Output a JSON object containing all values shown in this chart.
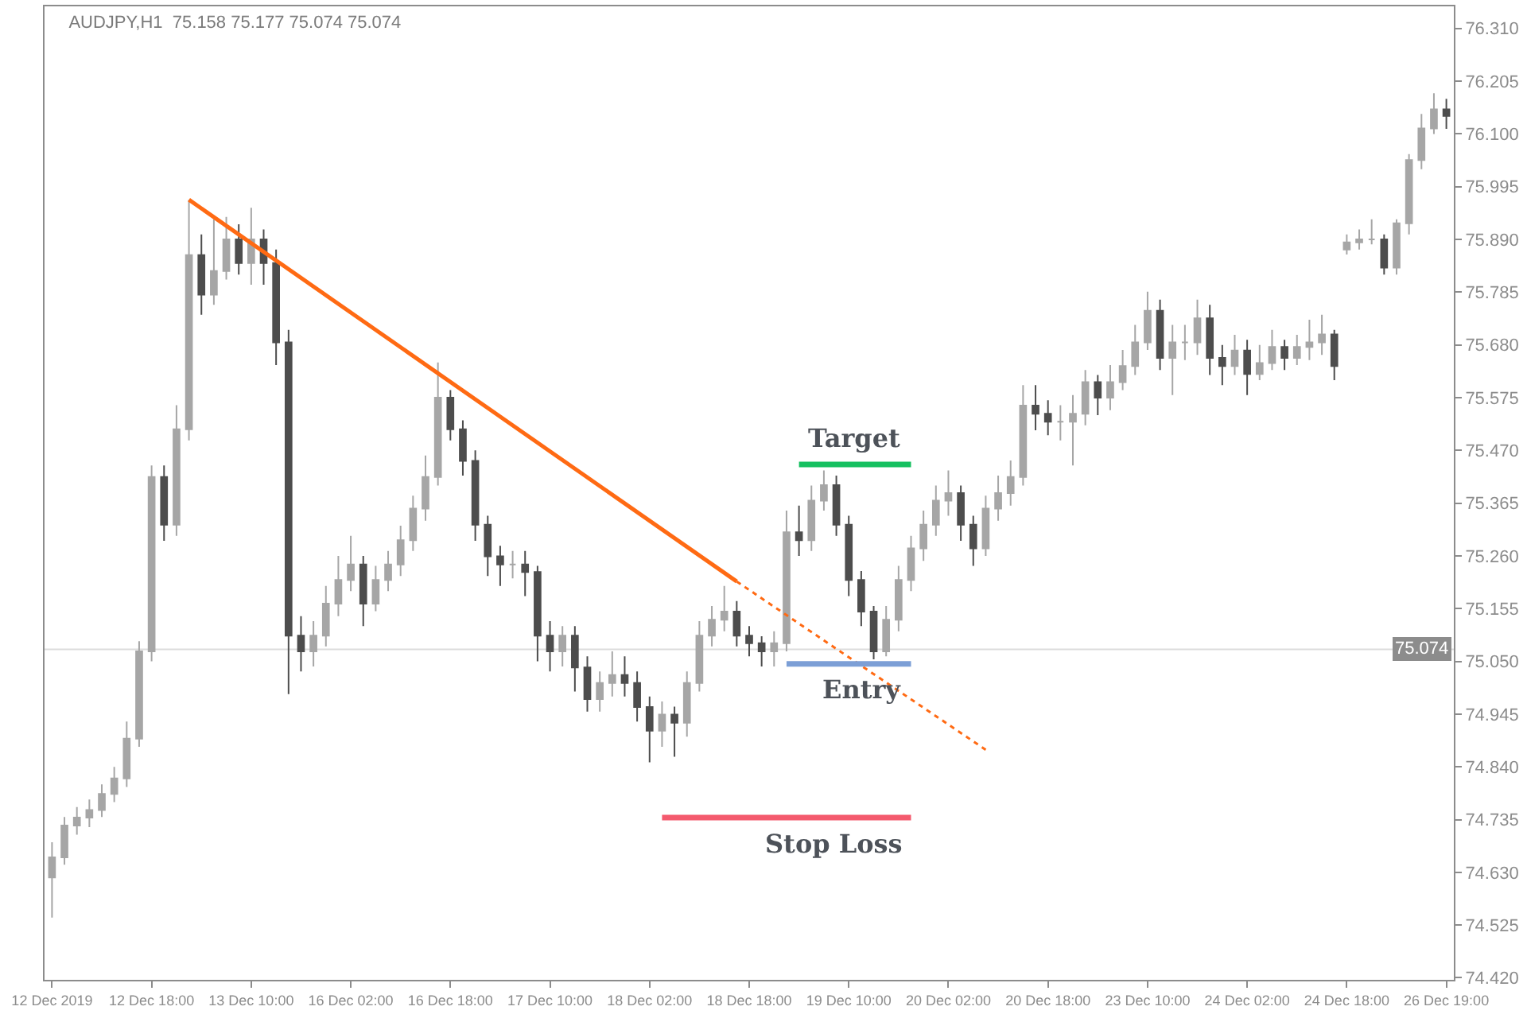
{
  "chart_data": {
    "type": "candlestick",
    "title": "AUDJPY,H1  75.158 75.177 75.074 75.074",
    "categories": [
      "12 Dec 2019",
      null,
      null,
      null,
      null,
      null,
      null,
      null,
      "12 Dec 18:00",
      null,
      null,
      null,
      null,
      null,
      null,
      null,
      "13 Dec 10:00",
      null,
      null,
      null,
      null,
      null,
      null,
      null,
      "16 Dec 02:00",
      null,
      null,
      null,
      null,
      null,
      null,
      null,
      "16 Dec 18:00",
      null,
      null,
      null,
      null,
      null,
      null,
      null,
      "17 Dec 10:00",
      null,
      null,
      null,
      null,
      null,
      null,
      null,
      "18 Dec 02:00",
      null,
      null,
      null,
      null,
      null,
      null,
      null,
      "18 Dec 18:00",
      null,
      null,
      null,
      null,
      null,
      null,
      null,
      "19 Dec 10:00",
      null,
      null,
      null,
      null,
      null,
      null,
      null,
      "20 Dec 02:00",
      null,
      null,
      null,
      null,
      null,
      null,
      null,
      "20 Dec 18:00",
      null,
      null,
      null,
      null,
      null,
      null,
      null,
      "23 Dec 10:00",
      null,
      null,
      null,
      null,
      null,
      null,
      null,
      "24 Dec 02:00",
      null,
      null,
      null,
      null,
      null,
      null,
      null,
      "24 Dec 18:00",
      null,
      null,
      null,
      null,
      null,
      null,
      null,
      "26 Dec 19:00"
    ],
    "ohlc": [
      [
        74.62,
        74.69,
        74.54,
        74.66
      ],
      [
        74.66,
        74.74,
        74.645,
        74.723
      ],
      [
        74.723,
        74.76,
        74.705,
        74.739
      ],
      [
        74.739,
        74.775,
        74.72,
        74.754
      ],
      [
        74.754,
        74.805,
        74.74,
        74.786
      ],
      [
        74.786,
        74.84,
        74.77,
        74.817
      ],
      [
        74.817,
        74.93,
        74.8,
        74.896
      ],
      [
        74.896,
        75.09,
        74.88,
        75.07
      ],
      [
        75.07,
        75.44,
        75.05,
        75.417
      ],
      [
        75.417,
        75.44,
        75.29,
        75.322
      ],
      [
        75.322,
        75.56,
        75.3,
        75.512
      ],
      [
        75.512,
        75.969,
        75.49,
        75.859
      ],
      [
        75.859,
        75.9,
        75.74,
        75.78
      ],
      [
        75.78,
        75.93,
        75.76,
        75.827
      ],
      [
        75.827,
        75.935,
        75.81,
        75.89
      ],
      [
        75.89,
        75.92,
        75.82,
        75.843
      ],
      [
        75.843,
        75.953,
        75.8,
        75.89
      ],
      [
        75.89,
        75.91,
        75.8,
        75.843
      ],
      [
        75.843,
        75.87,
        75.64,
        75.685
      ],
      [
        75.685,
        75.71,
        74.985,
        75.101
      ],
      [
        75.101,
        75.14,
        75.03,
        75.07
      ],
      [
        75.07,
        75.13,
        75.04,
        75.101
      ],
      [
        75.101,
        75.2,
        75.08,
        75.165
      ],
      [
        75.165,
        75.26,
        75.14,
        75.212
      ],
      [
        75.212,
        75.3,
        75.19,
        75.243
      ],
      [
        75.243,
        75.26,
        75.12,
        75.165
      ],
      [
        75.165,
        75.24,
        75.15,
        75.212
      ],
      [
        75.212,
        75.27,
        75.19,
        75.243
      ],
      [
        75.243,
        75.32,
        75.22,
        75.291
      ],
      [
        75.291,
        75.38,
        75.27,
        75.354
      ],
      [
        75.354,
        75.46,
        75.33,
        75.417
      ],
      [
        75.417,
        75.645,
        75.4,
        75.575
      ],
      [
        75.575,
        75.59,
        75.49,
        75.512
      ],
      [
        75.512,
        75.53,
        75.42,
        75.449
      ],
      [
        75.449,
        75.47,
        75.29,
        75.322
      ],
      [
        75.322,
        75.34,
        75.22,
        75.259
      ],
      [
        75.259,
        75.28,
        75.2,
        75.243
      ],
      [
        75.243,
        75.27,
        75.215,
        75.243
      ],
      [
        75.243,
        75.27,
        75.18,
        75.228
      ],
      [
        75.228,
        75.24,
        75.05,
        75.101
      ],
      [
        75.101,
        75.13,
        75.03,
        75.07
      ],
      [
        75.07,
        75.12,
        75.04,
        75.101
      ],
      [
        75.101,
        75.12,
        74.99,
        75.038
      ],
      [
        75.038,
        75.06,
        74.95,
        74.975
      ],
      [
        74.975,
        75.03,
        74.95,
        75.007
      ],
      [
        75.007,
        75.07,
        74.98,
        75.023
      ],
      [
        75.023,
        75.06,
        74.98,
        75.007
      ],
      [
        75.007,
        75.03,
        74.93,
        74.959
      ],
      [
        74.959,
        74.98,
        74.849,
        74.912
      ],
      [
        74.912,
        74.97,
        74.88,
        74.944
      ],
      [
        74.944,
        74.96,
        74.86,
        74.928
      ],
      [
        74.928,
        75.03,
        74.9,
        75.007
      ],
      [
        75.007,
        75.13,
        74.99,
        75.101
      ],
      [
        75.101,
        75.16,
        75.08,
        75.133
      ],
      [
        75.133,
        75.2,
        75.11,
        75.149
      ],
      [
        75.149,
        75.17,
        75.08,
        75.101
      ],
      [
        75.101,
        75.12,
        75.06,
        75.086
      ],
      [
        75.086,
        75.1,
        75.04,
        75.07
      ],
      [
        75.07,
        75.11,
        75.04,
        75.086
      ],
      [
        75.086,
        75.35,
        75.07,
        75.307
      ],
      [
        75.307,
        75.36,
        75.26,
        75.291
      ],
      [
        75.291,
        75.4,
        75.27,
        75.37
      ],
      [
        75.37,
        75.43,
        75.35,
        75.401
      ],
      [
        75.401,
        75.42,
        75.3,
        75.322
      ],
      [
        75.322,
        75.34,
        75.18,
        75.212
      ],
      [
        75.212,
        75.23,
        75.12,
        75.149
      ],
      [
        75.149,
        75.16,
        75.054,
        75.07
      ],
      [
        75.07,
        75.16,
        75.06,
        75.133
      ],
      [
        75.133,
        75.24,
        75.11,
        75.212
      ],
      [
        75.212,
        75.3,
        75.19,
        75.275
      ],
      [
        75.275,
        75.35,
        75.25,
        75.322
      ],
      [
        75.322,
        75.4,
        75.3,
        75.37
      ],
      [
        75.37,
        75.43,
        75.34,
        75.385
      ],
      [
        75.385,
        75.4,
        75.29,
        75.322
      ],
      [
        75.322,
        75.34,
        75.24,
        75.275
      ],
      [
        75.275,
        75.38,
        75.26,
        75.354
      ],
      [
        75.354,
        75.42,
        75.33,
        75.385
      ],
      [
        75.385,
        75.45,
        75.36,
        75.417
      ],
      [
        75.417,
        75.6,
        75.4,
        75.559
      ],
      [
        75.559,
        75.6,
        75.51,
        75.543
      ],
      [
        75.543,
        75.57,
        75.5,
        75.527
      ],
      [
        75.527,
        75.56,
        75.49,
        75.527
      ],
      [
        75.527,
        75.58,
        75.44,
        75.543
      ],
      [
        75.543,
        75.63,
        75.52,
        75.606
      ],
      [
        75.606,
        75.62,
        75.54,
        75.575
      ],
      [
        75.575,
        75.64,
        75.55,
        75.606
      ],
      [
        75.606,
        75.67,
        75.59,
        75.638
      ],
      [
        75.638,
        75.72,
        75.62,
        75.685
      ],
      [
        75.685,
        75.786,
        75.67,
        75.748
      ],
      [
        75.748,
        75.77,
        75.63,
        75.654
      ],
      [
        75.654,
        75.72,
        75.58,
        75.685
      ],
      [
        75.685,
        75.72,
        75.65,
        75.685
      ],
      [
        75.685,
        75.77,
        75.66,
        75.733
      ],
      [
        75.733,
        75.76,
        75.62,
        75.654
      ],
      [
        75.654,
        75.68,
        75.6,
        75.638
      ],
      [
        75.638,
        75.7,
        75.62,
        75.669
      ],
      [
        75.669,
        75.69,
        75.58,
        75.622
      ],
      [
        75.622,
        75.68,
        75.61,
        75.644
      ],
      [
        75.644,
        75.71,
        75.63,
        75.676
      ],
      [
        75.676,
        75.69,
        75.63,
        75.654
      ],
      [
        75.654,
        75.7,
        75.64,
        75.676
      ],
      [
        75.676,
        75.73,
        75.65,
        75.685
      ],
      [
        75.685,
        75.74,
        75.66,
        75.701
      ],
      [
        75.701,
        75.71,
        75.61,
        75.638
      ],
      [
        75.87,
        75.9,
        75.86,
        75.884
      ],
      [
        75.884,
        75.91,
        75.87,
        75.89
      ],
      [
        75.89,
        75.93,
        75.88,
        75.89
      ],
      [
        75.89,
        75.9,
        75.82,
        75.834
      ],
      [
        75.834,
        75.93,
        75.82,
        75.922
      ],
      [
        75.922,
        76.06,
        75.9,
        76.048
      ],
      [
        76.048,
        76.14,
        76.03,
        76.111
      ],
      [
        76.111,
        76.181,
        76.1,
        76.149
      ],
      [
        76.149,
        76.17,
        76.11,
        76.136
      ]
    ],
    "colors": [
      "#a6a6a6",
      "#a6a6a6",
      "#a6a6a6",
      "#a6a6a6",
      "#a6a6a6",
      "#a6a6a6",
      "#a6a6a6",
      "#a6a6a6",
      "#a6a6a6",
      "#4d4d4d",
      "#a6a6a6",
      "#a6a6a6",
      "#4d4d4d",
      "#a6a6a6",
      "#a6a6a6",
      "#4d4d4d",
      "#a6a6a6",
      "#4d4d4d",
      "#4d4d4d",
      "#4d4d4d",
      "#4d4d4d",
      "#a6a6a6",
      "#a6a6a6",
      "#a6a6a6",
      "#a6a6a6",
      "#4d4d4d",
      "#a6a6a6",
      "#a6a6a6",
      "#a6a6a6",
      "#a6a6a6",
      "#a6a6a6",
      "#a6a6a6",
      "#4d4d4d",
      "#4d4d4d",
      "#4d4d4d",
      "#4d4d4d",
      "#4d4d4d",
      "#a6a6a6",
      "#4d4d4d",
      "#4d4d4d",
      "#4d4d4d",
      "#a6a6a6",
      "#4d4d4d",
      "#4d4d4d",
      "#a6a6a6",
      "#a6a6a6",
      "#4d4d4d",
      "#4d4d4d",
      "#4d4d4d",
      "#a6a6a6",
      "#4d4d4d",
      "#a6a6a6",
      "#a6a6a6",
      "#a6a6a6",
      "#a6a6a6",
      "#4d4d4d",
      "#4d4d4d",
      "#4d4d4d",
      "#a6a6a6",
      "#a6a6a6",
      "#4d4d4d",
      "#a6a6a6",
      "#a6a6a6",
      "#4d4d4d",
      "#4d4d4d",
      "#4d4d4d",
      "#4d4d4d",
      "#a6a6a6",
      "#a6a6a6",
      "#a6a6a6",
      "#a6a6a6",
      "#a6a6a6",
      "#a6a6a6",
      "#4d4d4d",
      "#4d4d4d",
      "#a6a6a6",
      "#a6a6a6",
      "#a6a6a6",
      "#a6a6a6",
      "#4d4d4d",
      "#4d4d4d",
      "#a6a6a6",
      "#a6a6a6",
      "#a6a6a6",
      "#4d4d4d",
      "#a6a6a6",
      "#a6a6a6",
      "#a6a6a6",
      "#a6a6a6",
      "#4d4d4d",
      "#a6a6a6",
      "#a6a6a6",
      "#a6a6a6",
      "#4d4d4d",
      "#4d4d4d",
      "#a6a6a6",
      "#4d4d4d",
      "#a6a6a6",
      "#a6a6a6",
      "#4d4d4d",
      "#a6a6a6",
      "#a6a6a6",
      "#a6a6a6",
      "#4d4d4d",
      "#a6a6a6",
      "#a6a6a6",
      "#a6a6a6",
      "#4d4d4d",
      "#a6a6a6",
      "#a6a6a6",
      "#a6a6a6",
      "#a6a6a6",
      "#4d4d4d"
    ],
    "series": [
      {
        "type": "line",
        "color": "#ff6a13",
        "line_style": "solid",
        "values": [
          null,
          null,
          null,
          null,
          null,
          null,
          null,
          null,
          null,
          null,
          null,
          75.969,
          null,
          null,
          null,
          null,
          null,
          null,
          null,
          null,
          null,
          null,
          null,
          null,
          null,
          null,
          null,
          null,
          null,
          null,
          null,
          null,
          null,
          null,
          null,
          null,
          null,
          null,
          null,
          null,
          null,
          null,
          null,
          null,
          null,
          null,
          null,
          null,
          null,
          null,
          null,
          null,
          null,
          null,
          null,
          75.209,
          null,
          null,
          null,
          null,
          null,
          null,
          null,
          null,
          null,
          null,
          null,
          null,
          null,
          null,
          null,
          null,
          null,
          null,
          null,
          null,
          null,
          null,
          null,
          null,
          null,
          null,
          null,
          null,
          null,
          null,
          null,
          null,
          null,
          null,
          null,
          null,
          null,
          null,
          null,
          null,
          null,
          null,
          null,
          null,
          null,
          null,
          null,
          null,
          null,
          null,
          null,
          null,
          null,
          null,
          null,
          null,
          null
        ]
      },
      {
        "type": "line",
        "color": "#ff6a13",
        "line_style": "dotted",
        "values": [
          null,
          null,
          null,
          null,
          null,
          null,
          null,
          null,
          null,
          null,
          null,
          null,
          null,
          null,
          null,
          null,
          null,
          null,
          null,
          null,
          null,
          null,
          null,
          null,
          null,
          null,
          null,
          null,
          null,
          null,
          null,
          null,
          null,
          null,
          null,
          null,
          null,
          null,
          null,
          null,
          null,
          null,
          null,
          null,
          null,
          null,
          null,
          null,
          null,
          null,
          null,
          null,
          null,
          null,
          null,
          75.209,
          null,
          null,
          null,
          null,
          null,
          null,
          null,
          null,
          null,
          null,
          null,
          null,
          null,
          null,
          null,
          null,
          null,
          null,
          null,
          74.874,
          null,
          null,
          null,
          null,
          null,
          null,
          null,
          null,
          null,
          null,
          null,
          null,
          null,
          null,
          null,
          null,
          null,
          null,
          null,
          null,
          null,
          null,
          null,
          null,
          null,
          null,
          null,
          null,
          null,
          null,
          null,
          null,
          null,
          null,
          null,
          null,
          null
        ]
      },
      {
        "type": "line",
        "name": "Target",
        "color": "#16c060",
        "line_style": "solid",
        "values": [
          null,
          null,
          null,
          null,
          null,
          null,
          null,
          null,
          null,
          null,
          null,
          null,
          null,
          null,
          null,
          null,
          null,
          null,
          null,
          null,
          null,
          null,
          null,
          null,
          null,
          null,
          null,
          null,
          null,
          null,
          null,
          null,
          null,
          null,
          null,
          null,
          null,
          null,
          null,
          null,
          null,
          null,
          null,
          null,
          null,
          null,
          null,
          null,
          null,
          null,
          null,
          null,
          null,
          null,
          null,
          null,
          null,
          null,
          null,
          null,
          75.442,
          null,
          null,
          null,
          null,
          null,
          null,
          null,
          null,
          75.442,
          null,
          null,
          null,
          null,
          null,
          null,
          null,
          null,
          null,
          null,
          null,
          null,
          null,
          null,
          null,
          null,
          null,
          null,
          null,
          null,
          null,
          null,
          null,
          null,
          null,
          null,
          null,
          null,
          null,
          null,
          null,
          null,
          null,
          null,
          null,
          null,
          null,
          null,
          null,
          null,
          null,
          null,
          null
        ]
      },
      {
        "type": "line",
        "name": "Entry",
        "color": "#7c9fd6",
        "line_style": "solid",
        "values": [
          null,
          null,
          null,
          null,
          null,
          null,
          null,
          null,
          null,
          null,
          null,
          null,
          null,
          null,
          null,
          null,
          null,
          null,
          null,
          null,
          null,
          null,
          null,
          null,
          null,
          null,
          null,
          null,
          null,
          null,
          null,
          null,
          null,
          null,
          null,
          null,
          null,
          null,
          null,
          null,
          null,
          null,
          null,
          null,
          null,
          null,
          null,
          null,
          null,
          null,
          null,
          null,
          null,
          null,
          null,
          null,
          null,
          null,
          null,
          75.045,
          null,
          null,
          null,
          null,
          null,
          null,
          null,
          null,
          null,
          75.045,
          null,
          null,
          null,
          null,
          null,
          null,
          null,
          null,
          null,
          null,
          null,
          null,
          null,
          null,
          null,
          null,
          null,
          null,
          null,
          null,
          null,
          null,
          null,
          null,
          null,
          null,
          null,
          null,
          null,
          null,
          null,
          null,
          null,
          null,
          null,
          null,
          null,
          null,
          null,
          null,
          null,
          null,
          null
        ]
      },
      {
        "type": "line",
        "name": "Stop Loss",
        "color": "#f45a6e",
        "line_style": "solid",
        "values": [
          null,
          null,
          null,
          null,
          null,
          null,
          null,
          null,
          null,
          null,
          null,
          null,
          null,
          null,
          null,
          null,
          null,
          null,
          null,
          null,
          null,
          null,
          null,
          null,
          null,
          null,
          null,
          null,
          null,
          null,
          null,
          null,
          null,
          null,
          null,
          null,
          null,
          null,
          null,
          null,
          null,
          null,
          null,
          null,
          null,
          null,
          null,
          null,
          null,
          74.739,
          null,
          null,
          null,
          null,
          null,
          null,
          null,
          null,
          null,
          null,
          null,
          null,
          null,
          null,
          null,
          null,
          null,
          null,
          null,
          74.739,
          null,
          null,
          null,
          null,
          null,
          null,
          null,
          null,
          null,
          null,
          null,
          null,
          null,
          null,
          null,
          null,
          null,
          null,
          null,
          null,
          null,
          null,
          null,
          null,
          null,
          null,
          null,
          null,
          null,
          null,
          null,
          null,
          null,
          null,
          null,
          null,
          null,
          null,
          null,
          null,
          null,
          null,
          null
        ]
      }
    ],
    "ref_lines": [
      {
        "axis": "y",
        "value": 75.074,
        "label": "75.074",
        "color": "#dcdcdc"
      }
    ],
    "ylim": [
      74.416,
      76.354
    ],
    "yticks": [
      {
        "value": 74.42,
        "label": "74.420"
      },
      {
        "value": 74.525,
        "label": "74.525"
      },
      {
        "value": 74.63,
        "label": "74.630"
      },
      {
        "value": 74.735,
        "label": "74.735"
      },
      {
        "value": 74.84,
        "label": "74.840"
      },
      {
        "value": 74.945,
        "label": "74.945"
      },
      {
        "value": 75.05,
        "label": "75.050"
      },
      {
        "value": 75.155,
        "label": "75.155"
      },
      {
        "value": 75.26,
        "label": "75.260"
      },
      {
        "value": 75.365,
        "label": "75.365"
      },
      {
        "value": 75.47,
        "label": "75.470"
      },
      {
        "value": 75.575,
        "label": "75.575"
      },
      {
        "value": 75.68,
        "label": "75.680"
      },
      {
        "value": 75.785,
        "label": "75.785"
      },
      {
        "value": 75.89,
        "label": "75.890"
      },
      {
        "value": 75.995,
        "label": "75.995"
      },
      {
        "value": 76.1,
        "label": "76.100"
      },
      {
        "value": 76.205,
        "label": "76.205"
      },
      {
        "value": 76.31,
        "label": "76.310"
      }
    ],
    "grid": false
  }
}
